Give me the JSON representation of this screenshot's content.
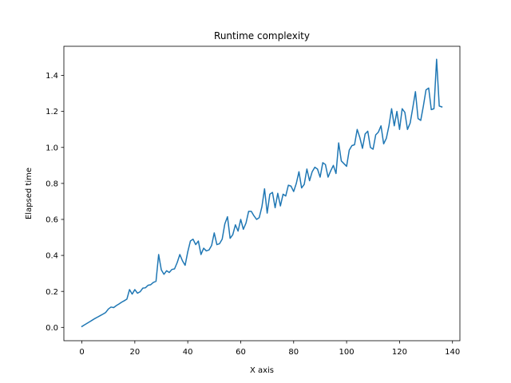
{
  "chart_data": {
    "type": "line",
    "title": "Runtime complexity",
    "xlabel": "X axis",
    "ylabel": "Elapsed time",
    "xlim": [
      -6.8,
      142.8
    ],
    "ylim": [
      -0.074,
      1.562
    ],
    "xticks": [
      0,
      20,
      40,
      60,
      80,
      100,
      120,
      140
    ],
    "xtick_labels": [
      "0",
      "20",
      "40",
      "60",
      "80",
      "100",
      "120",
      "140"
    ],
    "yticks": [
      0.0,
      0.2,
      0.4,
      0.6,
      0.8,
      1.0,
      1.2,
      1.4
    ],
    "ytick_labels": [
      "0.0",
      "0.2",
      "0.4",
      "0.6",
      "0.8",
      "1.0",
      "1.2",
      "1.4"
    ],
    "grid": false,
    "legend": "none",
    "series": [
      {
        "color": "#1f77b4",
        "x": [
          0,
          1,
          2,
          3,
          4,
          5,
          6,
          7,
          8,
          9,
          10,
          11,
          12,
          13,
          14,
          15,
          16,
          17,
          18,
          19,
          20,
          21,
          22,
          23,
          24,
          25,
          26,
          27,
          28,
          29,
          30,
          31,
          32,
          33,
          34,
          35,
          36,
          37,
          38,
          39,
          40,
          41,
          42,
          43,
          44,
          45,
          46,
          47,
          48,
          49,
          50,
          51,
          52,
          53,
          54,
          55,
          56,
          57,
          58,
          59,
          60,
          61,
          62,
          63,
          64,
          65,
          66,
          67,
          68,
          69,
          70,
          71,
          72,
          73,
          74,
          75,
          76,
          77,
          78,
          79,
          80,
          81,
          82,
          83,
          84,
          85,
          86,
          87,
          88,
          89,
          90,
          91,
          92,
          93,
          94,
          95,
          96,
          97,
          98,
          99,
          100,
          101,
          102,
          103,
          104,
          105,
          106,
          107,
          108,
          109,
          110,
          111,
          112,
          113,
          114,
          115,
          116,
          117,
          118,
          119,
          120,
          121,
          122,
          123,
          124,
          125,
          126,
          127,
          128,
          129,
          130,
          131,
          132,
          133,
          134,
          135,
          136
        ],
        "y": [
          0.005,
          0.014,
          0.023,
          0.032,
          0.041,
          0.05,
          0.058,
          0.066,
          0.074,
          0.083,
          0.102,
          0.113,
          0.11,
          0.121,
          0.13,
          0.14,
          0.148,
          0.157,
          0.21,
          0.185,
          0.21,
          0.19,
          0.198,
          0.218,
          0.22,
          0.234,
          0.237,
          0.25,
          0.256,
          0.405,
          0.32,
          0.295,
          0.315,
          0.305,
          0.322,
          0.325,
          0.36,
          0.405,
          0.37,
          0.345,
          0.42,
          0.48,
          0.49,
          0.46,
          0.48,
          0.405,
          0.44,
          0.425,
          0.43,
          0.455,
          0.525,
          0.46,
          0.465,
          0.49,
          0.575,
          0.615,
          0.495,
          0.515,
          0.57,
          0.535,
          0.6,
          0.545,
          0.58,
          0.645,
          0.645,
          0.62,
          0.6,
          0.61,
          0.67,
          0.77,
          0.635,
          0.74,
          0.75,
          0.665,
          0.745,
          0.675,
          0.74,
          0.73,
          0.79,
          0.785,
          0.755,
          0.8,
          0.865,
          0.775,
          0.795,
          0.88,
          0.815,
          0.865,
          0.89,
          0.88,
          0.835,
          0.915,
          0.905,
          0.835,
          0.87,
          0.9,
          0.855,
          1.025,
          0.925,
          0.91,
          0.895,
          0.985,
          1.01,
          1.015,
          1.1,
          1.055,
          0.995,
          1.075,
          1.09,
          1.0,
          0.99,
          1.07,
          1.085,
          1.12,
          1.02,
          1.05,
          1.12,
          1.215,
          1.12,
          1.2,
          1.1,
          1.215,
          1.195,
          1.1,
          1.135,
          1.22,
          1.31,
          1.16,
          1.15,
          1.23,
          1.32,
          1.33,
          1.21,
          1.215,
          1.49,
          1.23,
          1.225
        ]
      }
    ]
  }
}
